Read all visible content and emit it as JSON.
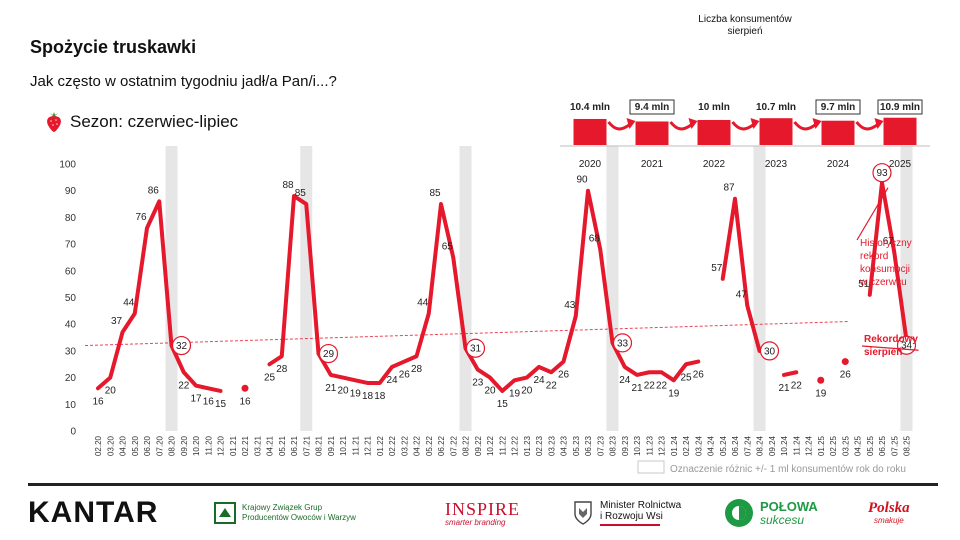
{
  "header": {
    "title": "Spożycie truskawki",
    "question": "Jak często w ostatnim tygodniu jadł/a Pan/i...?",
    "season": "Sezon: czerwiec-lipiec"
  },
  "colors": {
    "line": "#e5182c",
    "highlight_band": "#e6e6e6",
    "trend": "#e5182c",
    "axis_text": "#333333"
  },
  "chart_data": [
    {
      "type": "line",
      "ylim": [
        0,
        100
      ],
      "y_ticks": [
        "0",
        "10",
        "20",
        "30",
        "40",
        "50",
        "60",
        "70",
        "80",
        "90",
        "100"
      ],
      "x": [
        "02.20",
        "03.20",
        "04.20",
        "05.20",
        "06.20",
        "07.20",
        "08.20",
        "09.20",
        "10.20",
        "11.20",
        "12.20",
        "01.21",
        "02.21",
        "03.21",
        "04.21",
        "05.21",
        "06.21",
        "07.21",
        "08.21",
        "09.21",
        "10.21",
        "11.21",
        "12.21",
        "01.22",
        "02.22",
        "03.22",
        "04.22",
        "05.22",
        "06.22",
        "07.22",
        "08.22",
        "09.22",
        "10.22",
        "11.22",
        "12.22",
        "01.23",
        "02.23",
        "03.23",
        "04.23",
        "05.23",
        "06.23",
        "07.23",
        "08.23",
        "09.23",
        "10.23",
        "11.23",
        "12.23",
        "01.24",
        "02.24",
        "03.24",
        "04.24",
        "05.24",
        "06.24",
        "07.24",
        "08.24",
        "09.24",
        "10.24",
        "11.24",
        "12.24",
        "01.25",
        "02.25",
        "03.25",
        "04.25",
        "05.25",
        "06.25",
        "07.25",
        "08.25"
      ],
      "series": [
        {
          "values": [
            16,
            20,
            37,
            44,
            76,
            86,
            32,
            22,
            17,
            16,
            15,
            null,
            16,
            null,
            25,
            28,
            88,
            85,
            29,
            21,
            20,
            19,
            18,
            18,
            24,
            26,
            28,
            44,
            85,
            65,
            31,
            23,
            20,
            15,
            19,
            20,
            24,
            22,
            26,
            43,
            90,
            68,
            33,
            24,
            21,
            22,
            22,
            19,
            25,
            26,
            null,
            57,
            87,
            47,
            30,
            null,
            21,
            22,
            null,
            19,
            null,
            26,
            null,
            51,
            93,
            67,
            34
          ]
        }
      ],
      "highlighted_months": [
        "08.20",
        "07.21",
        "08.22",
        "08.23",
        "08.24",
        "08.25"
      ],
      "circled_labels": [
        "08.20",
        "08.21",
        "08.22",
        "08.23",
        "08.24",
        "06.25",
        "08.25"
      ],
      "trend_line": {
        "start": 32,
        "end": 41
      },
      "legend": "Oznaczenie różnic +/- 1 ml konsumentów rok do roku",
      "annotations": [
        {
          "text_lines": [
            "Historyczny",
            "rekord",
            "konsumpcji",
            "w czerwcu"
          ],
          "target": "06.25"
        },
        {
          "text_lines": [
            "Rekordowy",
            "sierpień"
          ],
          "target": "08.25"
        }
      ]
    },
    {
      "type": "bar",
      "title": [
        "Liczba konsumentów",
        "sierpień"
      ],
      "categories": [
        "2020",
        "2021",
        "2022",
        "2023",
        "2024",
        "2025"
      ],
      "values": [
        10.4,
        9.4,
        10,
        10.7,
        9.7,
        10.9
      ],
      "labels": [
        "10.4 mln",
        "9.4 mln",
        "10 mln",
        "10.7 mln",
        "9.7 mln",
        "10.9 mln"
      ],
      "boxed": [
        false,
        true,
        false,
        false,
        true,
        true
      ],
      "ylim": [
        0,
        11
      ]
    }
  ],
  "footer": {
    "kantar": "KANTAR",
    "kzgpow": [
      "Krajowy Związek Grup",
      "Producentów Owoców i Warzyw"
    ],
    "inspire": "INSPIRE",
    "inspire_tagline": "smarter branding",
    "ministry": [
      "Minister Rolnictwa",
      "i Rozwoju Wsi"
    ],
    "polowa": [
      "POŁOWA",
      "sukcesu"
    ],
    "polska": "Polska",
    "polska_tagline": "smakuje"
  },
  "icons": {
    "strawberry": "strawberry-icon",
    "eagle": "eagle-emblem-icon"
  }
}
